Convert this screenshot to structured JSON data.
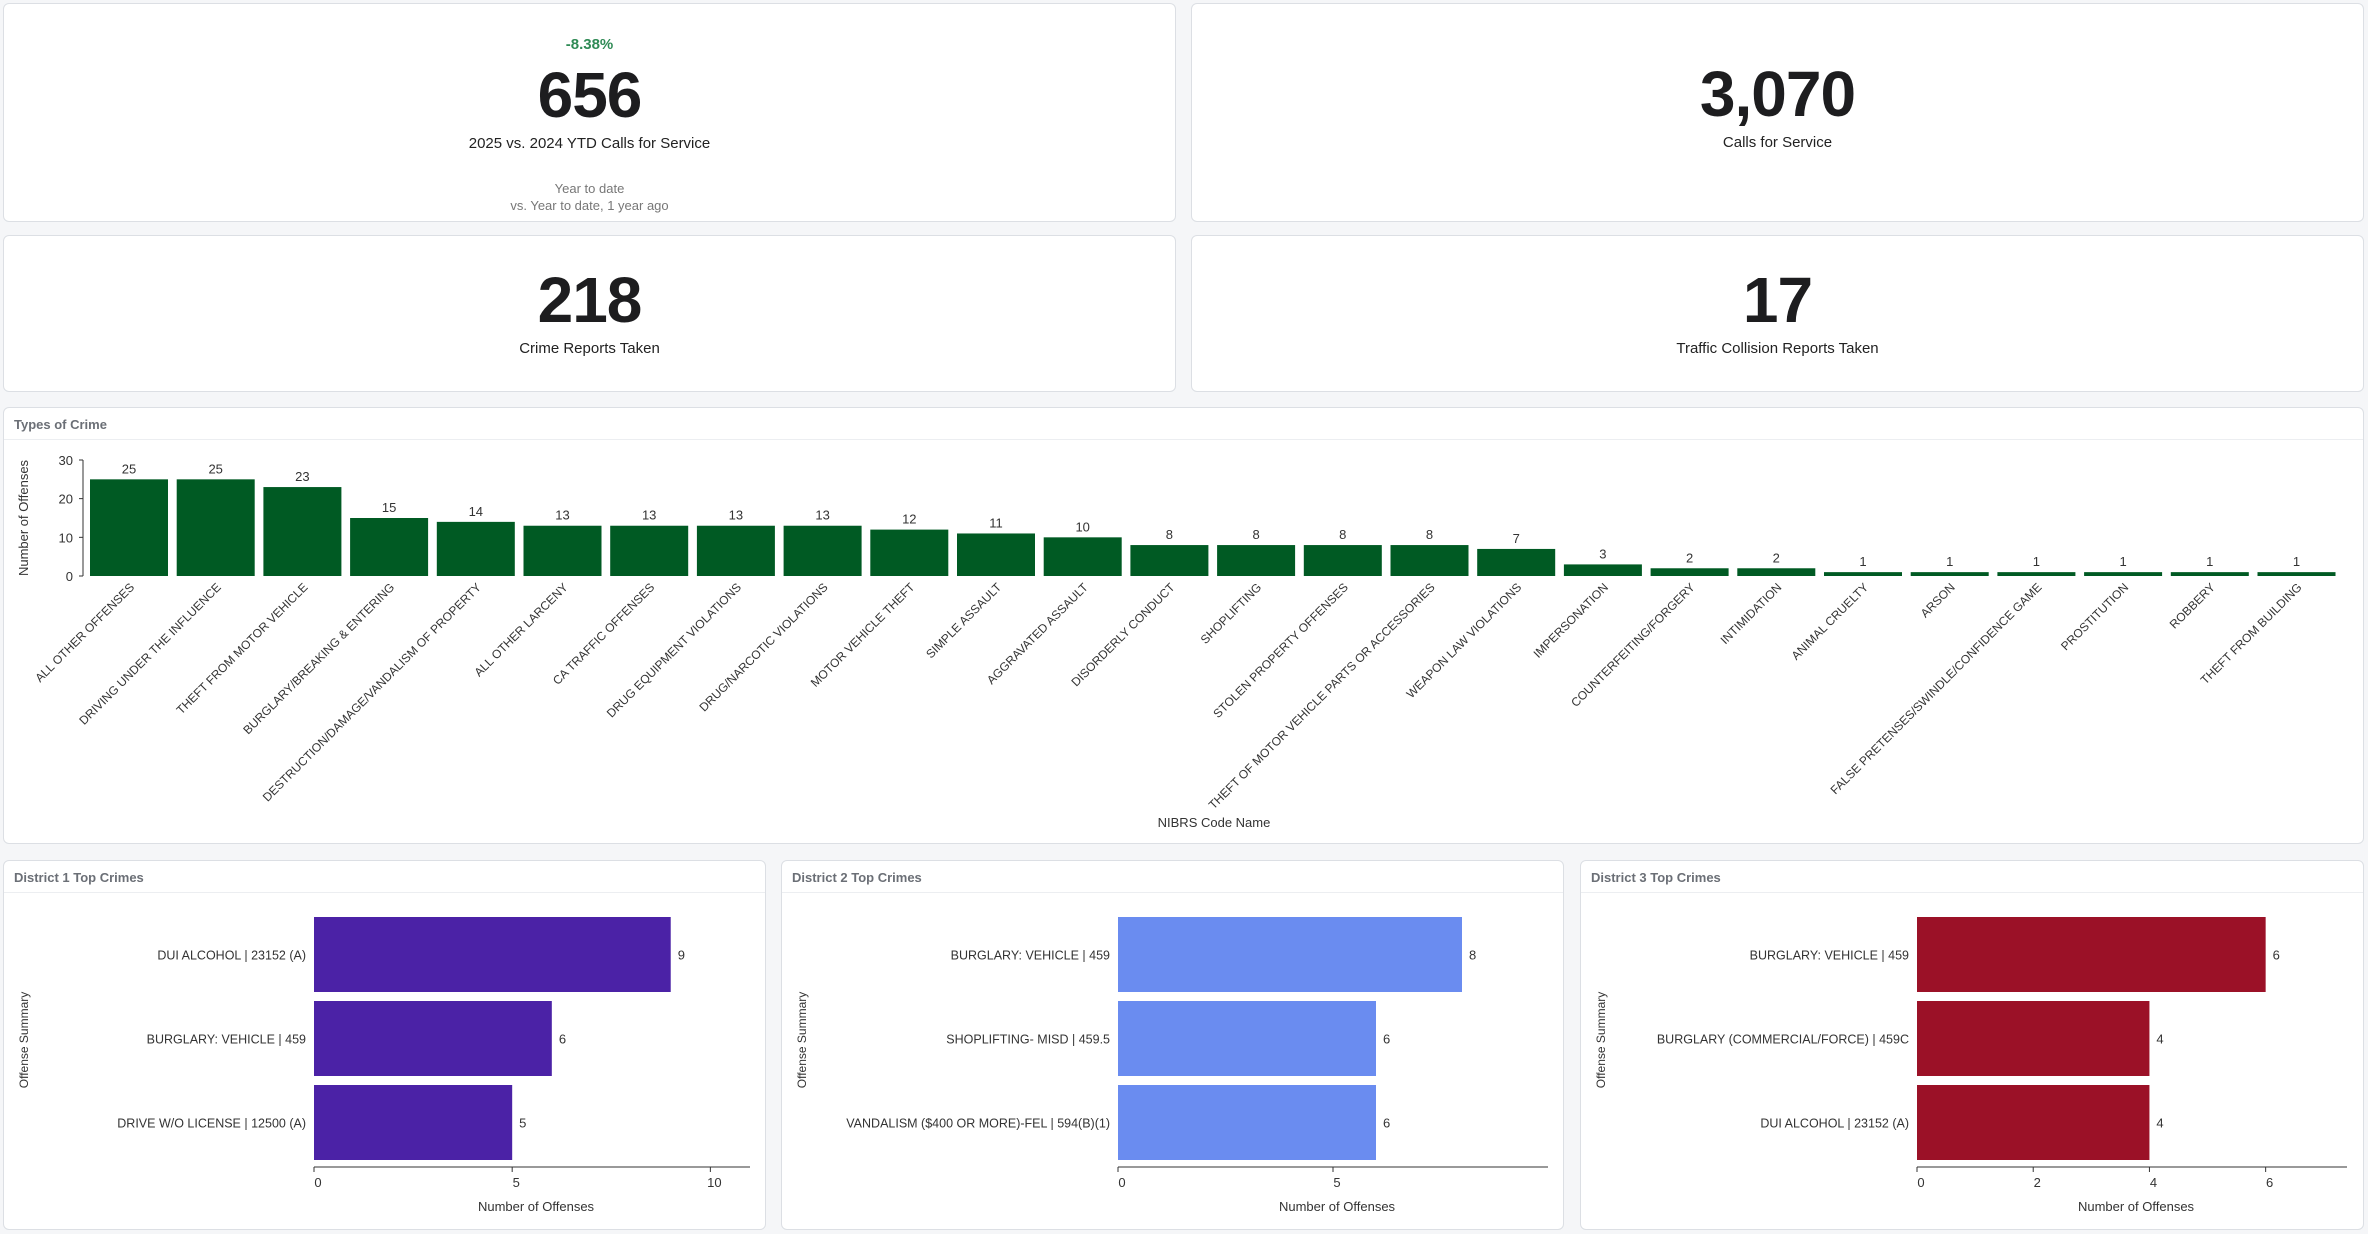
{
  "kpis": [
    {
      "id": "ytd-calls",
      "delta": "-8.38%",
      "value": "656",
      "label": "2025 vs. 2024 YTD Calls for Service",
      "sub1": "Year to date",
      "sub2": "vs. Year to date, 1 year ago"
    },
    {
      "id": "calls",
      "value": "3,070",
      "label": "Calls for Service"
    },
    {
      "id": "crime-reports",
      "value": "218",
      "label": "Crime Reports Taken"
    },
    {
      "id": "collision-reports",
      "value": "17",
      "label": "Traffic Collision Reports Taken"
    }
  ],
  "colors": {
    "types": "#005a23",
    "district1": "#4b22a6",
    "district2": "#6a8cf0",
    "district3": "#9b1127",
    "delta": "#2f8a55"
  },
  "chart_data": [
    {
      "type": "bar",
      "title": "Types of Crime",
      "xlabel": "NIBRS Code Name",
      "ylabel": "Number of Offenses",
      "ylim": [
        0,
        30
      ],
      "yticks": [
        0,
        10,
        20,
        30
      ],
      "categories": [
        "ALL OTHER OFFENSES",
        "DRIVING UNDER THE INFLUENCE",
        "THEFT FROM MOTOR VEHICLE",
        "BURGLARY/BREAKING & ENTERING",
        "DESTRUCTION/DAMAGE/VANDALISM OF PROPERTY",
        "ALL OTHER LARCENY",
        "CA TRAFFIC OFFENSES",
        "DRUG EQUIPMENT VIOLATIONS",
        "DRUG/NARCOTIC VIOLATIONS",
        "MOTOR VEHICLE THEFT",
        "SIMPLE ASSAULT",
        "AGGRAVATED ASSAULT",
        "DISORDERLY CONDUCT",
        "SHOPLIFTING",
        "STOLEN PROPERTY OFFENSES",
        "THEFT OF MOTOR VEHICLE PARTS OR ACCESSORIES",
        "WEAPON LAW VIOLATIONS",
        "IMPERSONATION",
        "COUNTERFEITING/FORGERY",
        "INTIMIDATION",
        "ANIMAL CRUELTY",
        "ARSON",
        "FALSE PRETENSES/SWINDLE/CONFIDENCE GAME",
        "PROSTITUTION",
        "ROBBERY",
        "THEFT FROM BUILDING"
      ],
      "values": [
        25,
        25,
        23,
        15,
        14,
        13,
        13,
        13,
        13,
        12,
        11,
        10,
        8,
        8,
        8,
        8,
        7,
        3,
        2,
        2,
        1,
        1,
        1,
        1,
        1,
        1
      ],
      "grid": false,
      "legend": "none"
    },
    {
      "type": "bar",
      "orientation": "horizontal",
      "title": "District 1 Top Crimes",
      "xlabel": "Number of Offenses",
      "ylabel": "Offense Summary",
      "xlim": [
        0,
        11
      ],
      "xticks": [
        0,
        5,
        10
      ],
      "categories": [
        "DUI ALCOHOL | 23152 (A)",
        "BURGLARY: VEHICLE | 459",
        "DRIVE W/O LICENSE | 12500 (A)"
      ],
      "values": [
        9,
        6,
        5
      ]
    },
    {
      "type": "bar",
      "orientation": "horizontal",
      "title": "District 2 Top Crimes",
      "xlabel": "Number of Offenses",
      "ylabel": "Offense Summary",
      "xlim": [
        0,
        10
      ],
      "xticks": [
        0,
        5
      ],
      "categories": [
        "BURGLARY: VEHICLE | 459",
        "SHOPLIFTING- MISD | 459.5",
        "VANDALISM ($400 OR MORE)-FEL | 594(B)(1)"
      ],
      "values": [
        8,
        6,
        6
      ]
    },
    {
      "type": "bar",
      "orientation": "horizontal",
      "title": "District 3 Top Crimes",
      "xlabel": "Number of Offenses",
      "ylabel": "Offense Summary",
      "xlim": [
        0,
        7.4
      ],
      "xticks": [
        0,
        2,
        4,
        6
      ],
      "categories": [
        "BURGLARY: VEHICLE | 459",
        "BURGLARY (COMMERCIAL/FORCE) | 459C",
        "DUI ALCOHOL | 23152 (A)"
      ],
      "values": [
        6,
        4,
        4
      ]
    }
  ]
}
